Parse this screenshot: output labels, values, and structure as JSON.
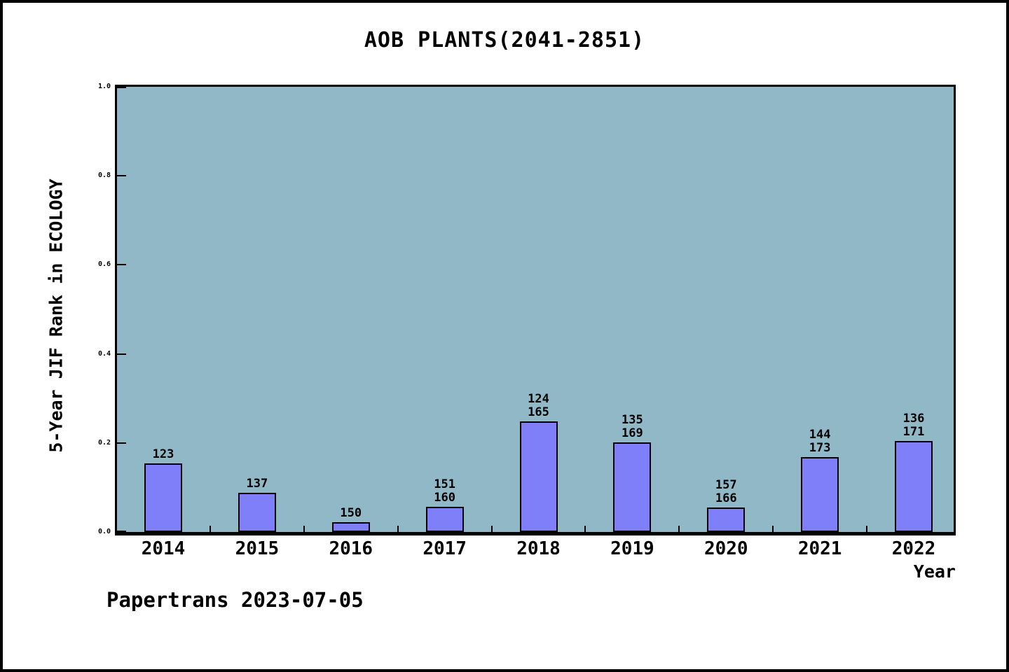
{
  "title": "AOB PLANTS(2041-2851)",
  "footer": "Papertrans 2023-07-05",
  "colors": {
    "plot_background": "#90b8c6",
    "bar_fill": "#7f7ffa",
    "axis": "#000000",
    "page_background": "#ffffff"
  },
  "chart_data": {
    "type": "bar",
    "title": "AOB PLANTS(2041-2851)",
    "xlabel": "Year",
    "ylabel": "5-Year JIF Rank in ECOLOGY",
    "categories": [
      "2014",
      "2015",
      "2016",
      "2017",
      "2018",
      "2019",
      "2020",
      "2021",
      "2022"
    ],
    "values": [
      0.154,
      0.088,
      0.022,
      0.057,
      0.248,
      0.201,
      0.055,
      0.168,
      0.205
    ],
    "bar_labels": [
      [
        "123"
      ],
      [
        "137"
      ],
      [
        "150"
      ],
      [
        "151",
        "160"
      ],
      [
        "124",
        "165"
      ],
      [
        "135",
        "169"
      ],
      [
        "157",
        "166"
      ],
      [
        "144",
        "173"
      ],
      [
        "136",
        "171"
      ]
    ],
    "yticks": [
      "0.0",
      "0.2",
      "0.4",
      "0.6",
      "0.8",
      "1.0"
    ],
    "ylim": [
      0,
      1
    ],
    "grid": false,
    "legend": null,
    "annotation": "Papertrans 2023-07-05"
  }
}
